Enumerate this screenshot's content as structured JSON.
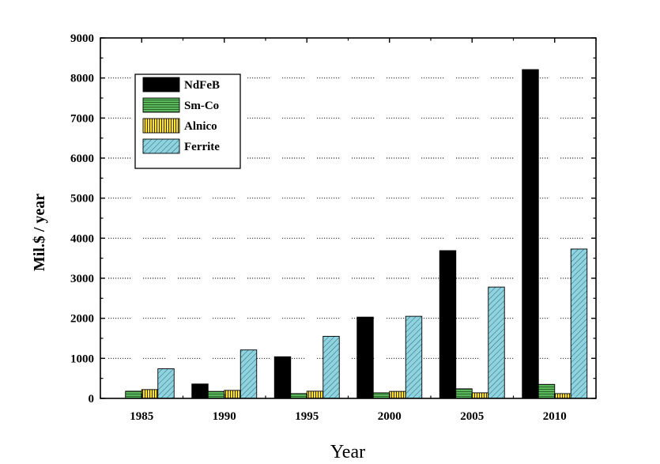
{
  "chart_data": {
    "type": "bar",
    "title": "",
    "xlabel": "Year",
    "ylabel": "Mil.$ / year",
    "categories": [
      "1985",
      "1990",
      "1995",
      "2000",
      "2005",
      "2010"
    ],
    "ylim": [
      0,
      9000
    ],
    "yticks": [
      0,
      1000,
      2000,
      3000,
      4000,
      5000,
      6000,
      7000,
      8000,
      9000
    ],
    "grid": "horizontal dotted",
    "legend_position": "top-left",
    "series": [
      {
        "name": "NdFeB",
        "color": "#000000",
        "pattern": "solid",
        "values": [
          0,
          360,
          1040,
          2030,
          3690,
          8210
        ]
      },
      {
        "name": "Sm-Co",
        "color": "#5cb85c",
        "pattern": "horizontal-lines",
        "values": [
          180,
          175,
          120,
          140,
          240,
          350
        ]
      },
      {
        "name": "Alnico",
        "color": "#ffe033",
        "pattern": "vertical-lines",
        "values": [
          220,
          200,
          180,
          175,
          140,
          120
        ]
      },
      {
        "name": "Ferrite",
        "color": "#8ed3e0",
        "pattern": "diagonal-lines",
        "values": [
          740,
          1210,
          1550,
          2050,
          2780,
          3730
        ]
      }
    ]
  }
}
